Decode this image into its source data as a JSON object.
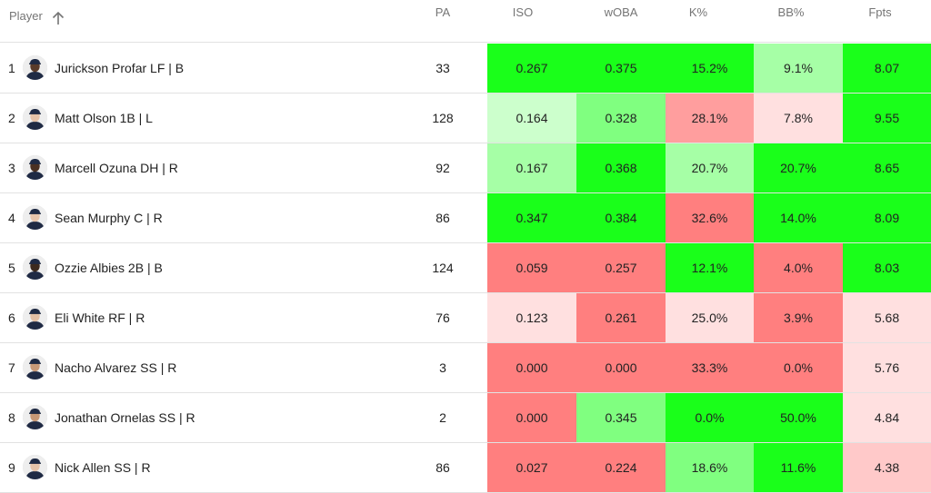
{
  "header": {
    "player": "Player",
    "pa": "PA",
    "iso": "ISO",
    "woba": "wOBA",
    "k": "K%",
    "bb": "BB%",
    "fpts": "Fpts"
  },
  "colors": {
    "green_strong": "#1aff1a",
    "green_medium": "#80ff80",
    "green_light": "#a6ffa6",
    "green_pale": "#ccffcc",
    "red_strong": "#ff7f7f",
    "red_medium": "#ff9e9e",
    "red_light": "#ffc9c9",
    "red_pale": "#ffe0e0"
  },
  "rows": [
    {
      "rank": "1",
      "name": "Jurickson Profar LF | B",
      "pa": "33",
      "iso": "0.267",
      "woba": "0.375",
      "k": "15.2%",
      "bb": "9.1%",
      "fpts": "8.07",
      "avatar_skin": "#5a3b2a",
      "colors": {
        "iso": "green_strong",
        "woba": "green_strong",
        "k": "green_strong",
        "bb": "green_light",
        "fpts": "green_strong"
      }
    },
    {
      "rank": "2",
      "name": "Matt Olson 1B | L",
      "pa": "128",
      "iso": "0.164",
      "woba": "0.328",
      "k": "28.1%",
      "bb": "7.8%",
      "fpts": "9.55",
      "avatar_skin": "#e6c2a8",
      "colors": {
        "iso": "green_pale",
        "woba": "green_medium",
        "k": "red_medium",
        "bb": "red_pale",
        "fpts": "green_strong"
      }
    },
    {
      "rank": "3",
      "name": "Marcell Ozuna DH | R",
      "pa": "92",
      "iso": "0.167",
      "woba": "0.368",
      "k": "20.7%",
      "bb": "20.7%",
      "fpts": "8.65",
      "avatar_skin": "#4a3022",
      "colors": {
        "iso": "green_light",
        "woba": "green_strong",
        "k": "green_light",
        "bb": "green_strong",
        "fpts": "green_strong"
      }
    },
    {
      "rank": "4",
      "name": "Sean Murphy C | R",
      "pa": "86",
      "iso": "0.347",
      "woba": "0.384",
      "k": "32.6%",
      "bb": "14.0%",
      "fpts": "8.09",
      "avatar_skin": "#e8c5ab",
      "colors": {
        "iso": "green_strong",
        "woba": "green_strong",
        "k": "red_strong",
        "bb": "green_strong",
        "fpts": "green_strong"
      }
    },
    {
      "rank": "5",
      "name": "Ozzie Albies 2B | B",
      "pa": "124",
      "iso": "0.059",
      "woba": "0.257",
      "k": "12.1%",
      "bb": "4.0%",
      "fpts": "8.03",
      "avatar_skin": "#3d2a1e",
      "colors": {
        "iso": "red_strong",
        "woba": "red_strong",
        "k": "green_strong",
        "bb": "red_strong",
        "fpts": "green_strong"
      }
    },
    {
      "rank": "6",
      "name": "Eli White RF | R",
      "pa": "76",
      "iso": "0.123",
      "woba": "0.261",
      "k": "25.0%",
      "bb": "3.9%",
      "fpts": "5.68",
      "avatar_skin": "#e3bfa4",
      "colors": {
        "iso": "red_pale",
        "woba": "red_strong",
        "k": "red_pale",
        "bb": "red_strong",
        "fpts": "red_pale"
      }
    },
    {
      "rank": "7",
      "name": "Nacho Alvarez SS | R",
      "pa": "3",
      "iso": "0.000",
      "woba": "0.000",
      "k": "33.3%",
      "bb": "0.0%",
      "fpts": "5.76",
      "avatar_skin": "#c99a78",
      "colors": {
        "iso": "red_strong",
        "woba": "red_strong",
        "k": "red_strong",
        "bb": "red_strong",
        "fpts": "red_pale"
      }
    },
    {
      "rank": "8",
      "name": "Jonathan Ornelas SS | R",
      "pa": "2",
      "iso": "0.000",
      "woba": "0.345",
      "k": "0.0%",
      "bb": "50.0%",
      "fpts": "4.84",
      "avatar_skin": "#c79876",
      "colors": {
        "iso": "red_strong",
        "woba": "green_medium",
        "k": "green_strong",
        "bb": "green_strong",
        "fpts": "red_pale"
      }
    },
    {
      "rank": "9",
      "name": "Nick Allen SS | R",
      "pa": "86",
      "iso": "0.027",
      "woba": "0.224",
      "k": "18.6%",
      "bb": "11.6%",
      "fpts": "4.38",
      "avatar_skin": "#e6c3a9",
      "colors": {
        "iso": "red_strong",
        "woba": "red_strong",
        "k": "green_medium",
        "bb": "green_strong",
        "fpts": "red_light"
      }
    }
  ],
  "icons": {
    "sort": "arrow-up-icon",
    "avatar": "player-headshot-icon"
  }
}
